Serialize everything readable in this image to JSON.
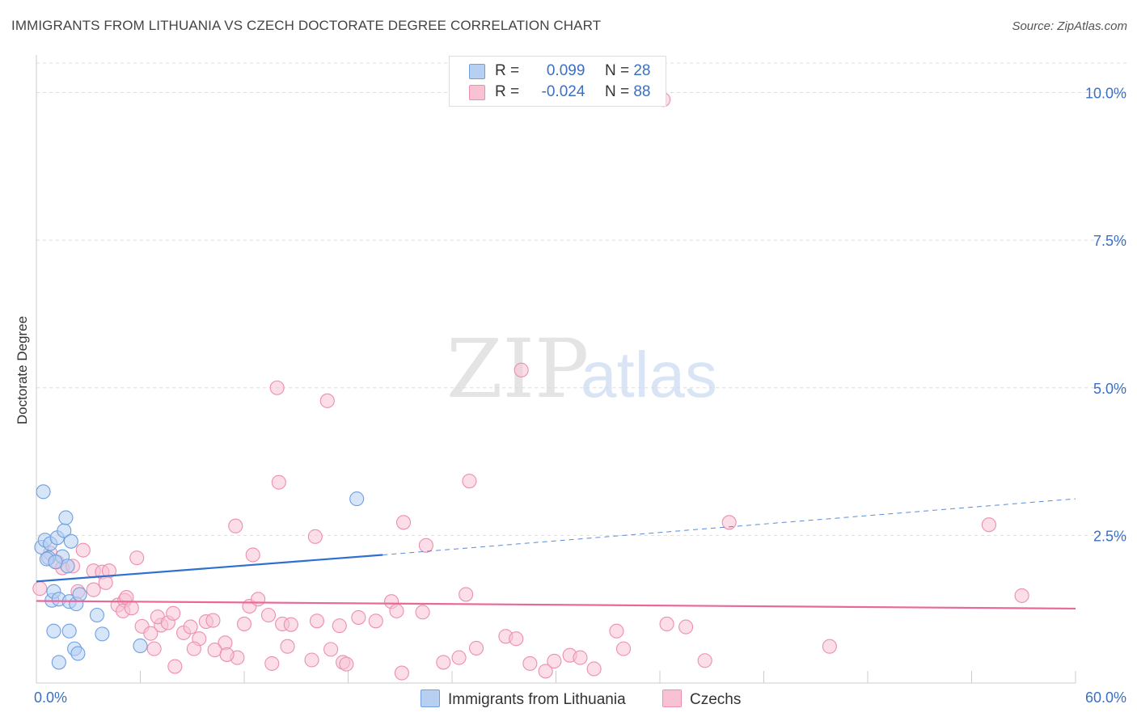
{
  "title": "IMMIGRANTS FROM LITHUANIA VS CZECH DOCTORATE DEGREE CORRELATION CHART",
  "source": "Source: ZipAtlas.com",
  "watermark": {
    "zip": "ZIP",
    "atlas": "atlas"
  },
  "colors": {
    "blue_fill": "#b7d0f2",
    "blue_stroke": "#6f9fe0",
    "blue_line": "#2f6fcf",
    "pink_fill": "#f8c2d3",
    "pink_stroke": "#ec8fae",
    "pink_line": "#e8689a",
    "axis_text": "#3a6fc4",
    "grid": "#dddddd"
  },
  "legend": {
    "rows": [
      {
        "r_label": "R =",
        "r_value": "0.099",
        "n_label": "N =",
        "n_value": "28"
      },
      {
        "r_label": "R =",
        "r_value": "-0.024",
        "n_label": "N =",
        "n_value": "88"
      }
    ]
  },
  "bottom_legend": {
    "series1": "Immigrants from Lithuania",
    "series2": "Czechs"
  },
  "chart_data": {
    "type": "scatter",
    "title": "IMMIGRANTS FROM LITHUANIA VS CZECH DOCTORATE DEGREE CORRELATION CHART",
    "xlabel": "",
    "ylabel": "Doctorate Degree",
    "xlim": [
      0,
      60
    ],
    "ylim": [
      0,
      10.5
    ],
    "x_tick_labels": [
      "0.0%",
      "60.0%"
    ],
    "y_ticks": [
      2.5,
      5.0,
      7.5,
      10.0
    ],
    "y_tick_labels": [
      "2.5%",
      "5.0%",
      "7.5%",
      "10.0%"
    ],
    "series": [
      {
        "name": "Immigrants from Lithuania",
        "r": 0.099,
        "n": 28,
        "trend": {
          "x0": 0,
          "y0": 1.72,
          "x1": 20,
          "y1": 2.17,
          "dashed_to_x": 60,
          "dashed_to_y": 3.12
        },
        "points": [
          [
            0.3,
            2.3
          ],
          [
            0.5,
            2.42
          ],
          [
            0.7,
            2.12
          ],
          [
            0.8,
            2.36
          ],
          [
            0.4,
            3.24
          ],
          [
            1.2,
            2.46
          ],
          [
            1.6,
            2.58
          ],
          [
            1.5,
            2.14
          ],
          [
            1.7,
            2.8
          ],
          [
            2.0,
            2.4
          ],
          [
            1.8,
            1.98
          ],
          [
            0.9,
            1.4
          ],
          [
            1.0,
            1.55
          ],
          [
            1.3,
            1.42
          ],
          [
            1.9,
            1.38
          ],
          [
            2.3,
            1.34
          ],
          [
            2.5,
            1.5
          ],
          [
            3.5,
            1.15
          ],
          [
            1.0,
            0.88
          ],
          [
            1.9,
            0.88
          ],
          [
            3.8,
            0.83
          ],
          [
            2.2,
            0.58
          ],
          [
            2.4,
            0.5
          ],
          [
            1.3,
            0.35
          ],
          [
            6.0,
            0.63
          ],
          [
            18.5,
            3.12
          ],
          [
            0.6,
            2.1
          ],
          [
            1.1,
            2.05
          ]
        ]
      },
      {
        "name": "Czechs",
        "r": -0.024,
        "n": 88,
        "trend": {
          "x0": 0,
          "y0": 1.39,
          "x1": 60,
          "y1": 1.26
        },
        "points": [
          [
            0.2,
            1.6
          ],
          [
            0.8,
            2.2
          ],
          [
            1.2,
            2.05
          ],
          [
            1.5,
            1.95
          ],
          [
            2.1,
            1.98
          ],
          [
            2.7,
            2.25
          ],
          [
            3.3,
            1.9
          ],
          [
            3.8,
            1.88
          ],
          [
            4.2,
            1.9
          ],
          [
            5.8,
            2.12
          ],
          [
            2.4,
            1.55
          ],
          [
            3.3,
            1.58
          ],
          [
            4.0,
            1.7
          ],
          [
            4.7,
            1.32
          ],
          [
            5.1,
            1.4
          ],
          [
            5.2,
            1.45
          ],
          [
            5.0,
            1.22
          ],
          [
            6.1,
            0.96
          ],
          [
            6.6,
            0.84
          ],
          [
            7.2,
            0.98
          ],
          [
            7.0,
            1.12
          ],
          [
            7.6,
            1.02
          ],
          [
            7.9,
            1.18
          ],
          [
            8.5,
            0.85
          ],
          [
            8.9,
            0.95
          ],
          [
            9.4,
            0.75
          ],
          [
            9.8,
            1.04
          ],
          [
            10.2,
            1.06
          ],
          [
            10.9,
            0.68
          ],
          [
            6.8,
            0.58
          ],
          [
            9.1,
            0.58
          ],
          [
            10.3,
            0.56
          ],
          [
            11.6,
            0.43
          ],
          [
            11.0,
            0.48
          ],
          [
            12.3,
            1.3
          ],
          [
            12.8,
            1.42
          ],
          [
            12.0,
            1.0
          ],
          [
            13.4,
            1.15
          ],
          [
            14.2,
            1.0
          ],
          [
            14.7,
            0.99
          ],
          [
            14.5,
            0.62
          ],
          [
            13.6,
            0.33
          ],
          [
            15.9,
            0.39
          ],
          [
            16.2,
            1.05
          ],
          [
            17.0,
            0.57
          ],
          [
            17.5,
            0.97
          ],
          [
            17.7,
            0.35
          ],
          [
            17.9,
            0.32
          ],
          [
            18.6,
            1.11
          ],
          [
            19.6,
            1.05
          ],
          [
            20.5,
            1.38
          ],
          [
            20.8,
            1.22
          ],
          [
            21.1,
            0.17
          ],
          [
            22.3,
            1.2
          ],
          [
            23.5,
            0.35
          ],
          [
            24.4,
            0.43
          ],
          [
            24.8,
            1.5
          ],
          [
            25.4,
            0.59
          ],
          [
            27.1,
            0.79
          ],
          [
            27.7,
            0.75
          ],
          [
            28.5,
            0.33
          ],
          [
            29.4,
            0.2
          ],
          [
            29.9,
            0.37
          ],
          [
            30.8,
            0.47
          ],
          [
            31.4,
            0.43
          ],
          [
            32.2,
            0.24
          ],
          [
            33.5,
            0.88
          ],
          [
            33.9,
            0.58
          ],
          [
            36.4,
            1.0
          ],
          [
            37.5,
            0.95
          ],
          [
            38.6,
            0.38
          ],
          [
            40.0,
            2.72
          ],
          [
            45.8,
            0.62
          ],
          [
            14.0,
            3.4
          ],
          [
            11.5,
            2.66
          ],
          [
            12.5,
            2.17
          ],
          [
            16.1,
            2.48
          ],
          [
            21.2,
            2.72
          ],
          [
            22.5,
            2.33
          ],
          [
            25.0,
            3.42
          ],
          [
            28.0,
            5.3
          ],
          [
            13.9,
            5.0
          ],
          [
            16.8,
            4.78
          ],
          [
            36.2,
            9.88
          ],
          [
            55.0,
            2.68
          ],
          [
            56.9,
            1.48
          ],
          [
            8.0,
            0.28
          ],
          [
            5.5,
            1.27
          ]
        ]
      }
    ]
  }
}
